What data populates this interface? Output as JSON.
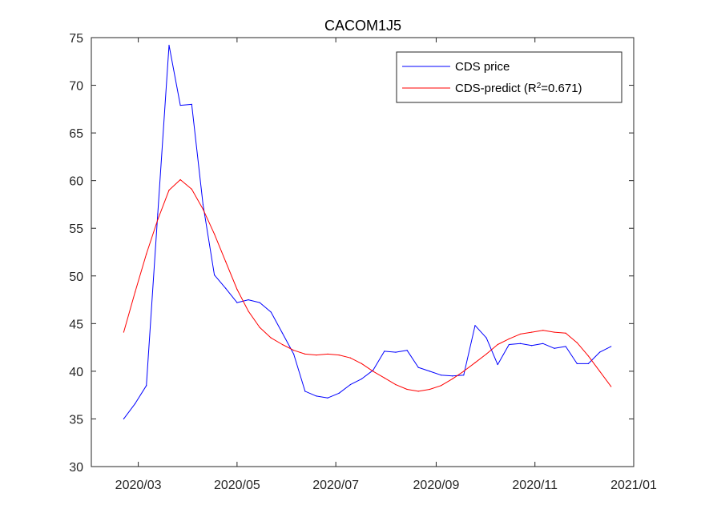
{
  "chart_data": {
    "type": "line",
    "title": "CACOM1J5",
    "xlabel": "",
    "ylabel": "",
    "xlim": [
      "2020-02-01",
      "2021-01-01"
    ],
    "ylim": [
      30,
      75
    ],
    "yticks": [
      30,
      35,
      40,
      45,
      50,
      55,
      60,
      65,
      70,
      75
    ],
    "xticks": [
      {
        "date": "2020-03-01",
        "label": "2020/03"
      },
      {
        "date": "2020-05-01",
        "label": "2020/05"
      },
      {
        "date": "2020-07-01",
        "label": "2020/07"
      },
      {
        "date": "2020-09-01",
        "label": "2020/09"
      },
      {
        "date": "2020-11-01",
        "label": "2020/11"
      },
      {
        "date": "2021-01-01",
        "label": "2021/01"
      }
    ],
    "grid": false,
    "legend_position": "top-right",
    "x": [
      "2020-02-21",
      "2020-02-28",
      "2020-03-06",
      "2020-03-13",
      "2020-03-20",
      "2020-03-27",
      "2020-04-03",
      "2020-04-10",
      "2020-04-17",
      "2020-04-24",
      "2020-05-01",
      "2020-05-08",
      "2020-05-15",
      "2020-05-22",
      "2020-05-29",
      "2020-06-05",
      "2020-06-12",
      "2020-06-19",
      "2020-06-26",
      "2020-07-03",
      "2020-07-10",
      "2020-07-17",
      "2020-07-24",
      "2020-07-31",
      "2020-08-07",
      "2020-08-14",
      "2020-08-21",
      "2020-08-28",
      "2020-09-04",
      "2020-09-11",
      "2020-09-18",
      "2020-09-25",
      "2020-10-02",
      "2020-10-09",
      "2020-10-16",
      "2020-10-23",
      "2020-10-30",
      "2020-11-06",
      "2020-11-13",
      "2020-11-20",
      "2020-11-27",
      "2020-12-04",
      "2020-12-11",
      "2020-12-18"
    ],
    "series": [
      {
        "name": "CDS price",
        "color": "#0000ff",
        "values": [
          35.0,
          36.6,
          38.5,
          56.5,
          74.2,
          67.9,
          68.0,
          57.5,
          50.1,
          48.7,
          47.2,
          47.5,
          47.2,
          46.2,
          44.0,
          41.8,
          37.9,
          37.4,
          37.2,
          37.7,
          38.6,
          39.2,
          40.1,
          42.1,
          42.0,
          42.2,
          40.4,
          40.0,
          39.6,
          39.5,
          39.6,
          44.8,
          43.5,
          40.7,
          42.8,
          42.9,
          42.7,
          42.9,
          42.4,
          42.6,
          40.8,
          40.8,
          42.0,
          42.6
        ]
      },
      {
        "name": "CDS-predict (R^2=0.671)",
        "color": "#ff0000",
        "values": [
          44.1,
          48.3,
          52.3,
          55.9,
          59.0,
          60.1,
          59.1,
          57.0,
          54.4,
          51.5,
          48.6,
          46.3,
          44.6,
          43.5,
          42.8,
          42.2,
          41.8,
          41.7,
          41.8,
          41.7,
          41.4,
          40.8,
          40.0,
          39.3,
          38.6,
          38.1,
          37.9,
          38.1,
          38.5,
          39.2,
          40.0,
          40.9,
          41.8,
          42.8,
          43.4,
          43.9,
          44.1,
          44.3,
          44.1,
          44.0,
          43.0,
          41.6,
          40.0,
          38.4
        ]
      }
    ],
    "legend_entries": [
      {
        "text": "CDS price",
        "sup": "",
        "suffix": ""
      },
      {
        "text": "CDS-predict (R",
        "sup": "2",
        "suffix": "=0.671)"
      }
    ]
  }
}
